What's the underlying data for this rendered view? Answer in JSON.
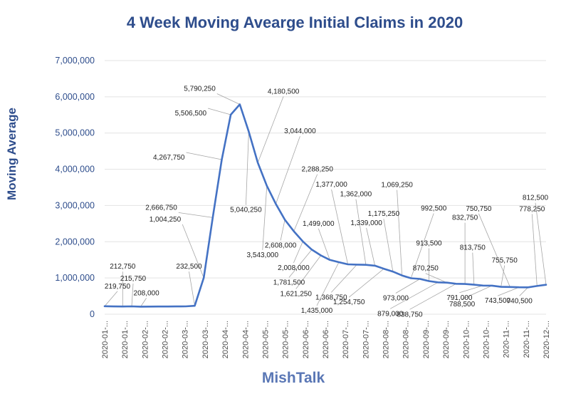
{
  "chart_data": {
    "type": "line",
    "title": "4 Week Moving Avearge Initial Claims in 2020",
    "ylabel": "Moving Average",
    "xlabel": "",
    "source": "MishTalk",
    "ylim": [
      0,
      7000000
    ],
    "yticks": [
      0,
      1000000,
      2000000,
      3000000,
      4000000,
      5000000,
      6000000,
      7000000
    ],
    "ytick_labels": [
      "0",
      "1,000,000",
      "2,000,000",
      "3,000,000",
      "4,000,000",
      "5,000,000",
      "6,000,000",
      "7,000,000"
    ],
    "xtick_labels": [
      "2020-01-...",
      "2020-01-...",
      "2020-02-...",
      "2020-02-...",
      "2020-03-...",
      "2020-03-...",
      "2020-04-...",
      "2020-04-...",
      "2020-05-...",
      "2020-05-...",
      "2020-06-...",
      "2020-06-...",
      "2020-07-...",
      "2020-07-...",
      "2020-08-...",
      "2020-08-...",
      "2020-09-...",
      "2020-09-...",
      "2020-10-...",
      "2020-10-...",
      "2020-11-...",
      "2020-11-...",
      "2020-12-..."
    ],
    "series": [
      {
        "name": "4 Week Moving Average",
        "color": "#4472c4",
        "values": [
          219750,
          215000,
          212750,
          215750,
          208000,
          210000,
          212000,
          212500,
          215000,
          215750,
          232500,
          1004250,
          2666750,
          4267750,
          5506500,
          5790250,
          5040250,
          4180500,
          3543000,
          3044000,
          2608000,
          2288250,
          2008000,
          1781500,
          1621250,
          1499000,
          1435000,
          1377000,
          1368750,
          1362000,
          1339000,
          1254750,
          1175250,
          1069250,
          992500,
          973000,
          913500,
          879000,
          870250,
          838750,
          832750,
          813750,
          791000,
          788500,
          755750,
          750750,
          743500,
          740500,
          778250,
          812500
        ]
      }
    ],
    "data_labels": [
      {
        "index": 0,
        "text": "219,750"
      },
      {
        "index": 2,
        "text": "212,750"
      },
      {
        "index": 3,
        "text": "215,750"
      },
      {
        "index": 4,
        "text": "208,000"
      },
      {
        "index": 10,
        "text": "232,500"
      },
      {
        "index": 11,
        "text": "1,004,250"
      },
      {
        "index": 12,
        "text": "2,666,750"
      },
      {
        "index": 13,
        "text": "4,267,750"
      },
      {
        "index": 14,
        "text": "5,506,500"
      },
      {
        "index": 15,
        "text": "5,790,250"
      },
      {
        "index": 16,
        "text": "5,040,250"
      },
      {
        "index": 17,
        "text": "4,180,500"
      },
      {
        "index": 18,
        "text": "3,543,000"
      },
      {
        "index": 19,
        "text": "3,044,000"
      },
      {
        "index": 20,
        "text": "2,608,000"
      },
      {
        "index": 21,
        "text": "2,288,250"
      },
      {
        "index": 22,
        "text": "2,008,000"
      },
      {
        "index": 23,
        "text": "1,781,500"
      },
      {
        "index": 24,
        "text": "1,621,250"
      },
      {
        "index": 25,
        "text": "1,499,000"
      },
      {
        "index": 26,
        "text": "1,435,000"
      },
      {
        "index": 27,
        "text": "1,377,000"
      },
      {
        "index": 28,
        "text": "1,368,750"
      },
      {
        "index": 29,
        "text": "1,362,000"
      },
      {
        "index": 30,
        "text": "1,339,000"
      },
      {
        "index": 31,
        "text": "1,254,750"
      },
      {
        "index": 32,
        "text": "1,175,250"
      },
      {
        "index": 33,
        "text": "1,069,250"
      },
      {
        "index": 34,
        "text": "992,500"
      },
      {
        "index": 35,
        "text": "973,000"
      },
      {
        "index": 36,
        "text": "913,500"
      },
      {
        "index": 37,
        "text": "879,000"
      },
      {
        "index": 38,
        "text": "870,250"
      },
      {
        "index": 39,
        "text": "838,750"
      },
      {
        "index": 40,
        "text": "832,750"
      },
      {
        "index": 41,
        "text": "813,750"
      },
      {
        "index": 42,
        "text": "791,000"
      },
      {
        "index": 43,
        "text": "788,500"
      },
      {
        "index": 44,
        "text": "755,750"
      },
      {
        "index": 45,
        "text": "750,750"
      },
      {
        "index": 46,
        "text": "743,500"
      },
      {
        "index": 47,
        "text": "740,500"
      },
      {
        "index": 48,
        "text": "778,250"
      },
      {
        "index": 49,
        "text": "812,500"
      }
    ],
    "grid": true,
    "legend": "none"
  }
}
